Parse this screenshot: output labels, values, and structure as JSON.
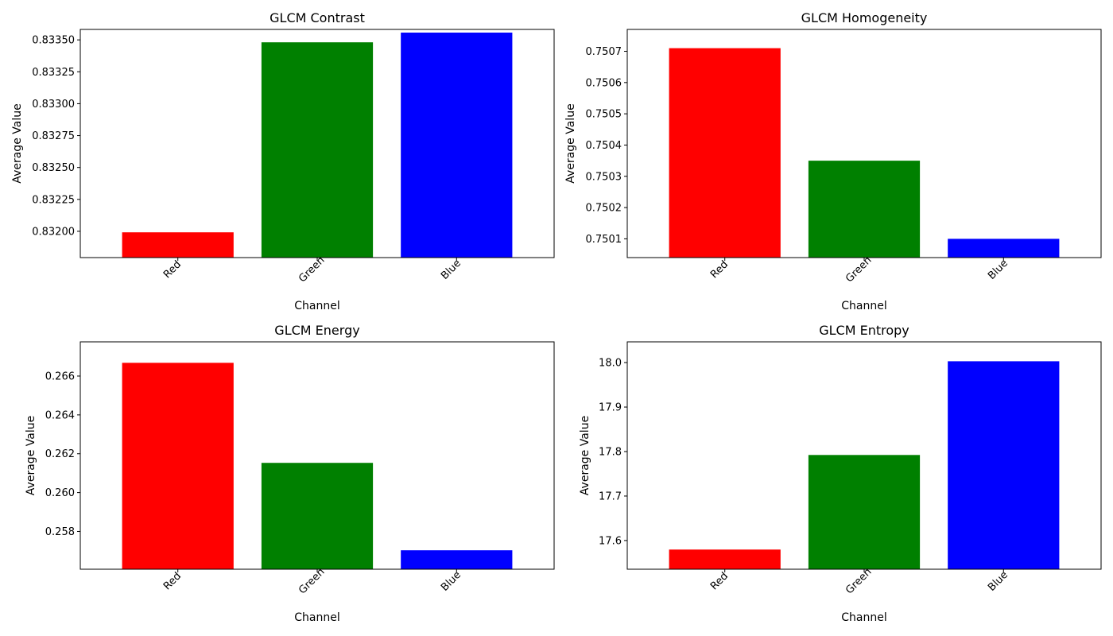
{
  "chart_data": [
    {
      "type": "bar",
      "title": "GLCM Contrast",
      "xlabel": "Channel",
      "ylabel": "Average Value",
      "categories": [
        "Red",
        "Green",
        "Blue"
      ],
      "values": [
        0.831992,
        0.833481,
        0.833557
      ],
      "colors": [
        "#ff0000",
        "#008000",
        "#0000ff"
      ],
      "ylim": [
        0.831794,
        0.833582
      ],
      "yticks": [
        0.832,
        0.83225,
        0.8325,
        0.83275,
        0.833,
        0.83325,
        0.8335
      ],
      "ytick_labels": [
        "0.83200",
        "0.83225",
        "0.83250",
        "0.83275",
        "0.83300",
        "0.83325",
        "0.83350"
      ]
    },
    {
      "type": "bar",
      "title": "GLCM Homogeneity",
      "xlabel": "Channel",
      "ylabel": "Average Value",
      "categories": [
        "Red",
        "Green",
        "Blue"
      ],
      "values": [
        0.75071,
        0.75035,
        0.7501
      ],
      "colors": [
        "#ff0000",
        "#008000",
        "#0000ff"
      ],
      "ylim": [
        0.75004,
        0.75077
      ],
      "yticks": [
        0.7501,
        0.7502,
        0.7503,
        0.7504,
        0.7505,
        0.7506,
        0.7507
      ],
      "ytick_labels": [
        "0.7501",
        "0.7502",
        "0.7503",
        "0.7504",
        "0.7505",
        "0.7506",
        "0.7507"
      ]
    },
    {
      "type": "bar",
      "title": "GLCM Energy",
      "xlabel": "Channel",
      "ylabel": "Average Value",
      "categories": [
        "Red",
        "Green",
        "Blue"
      ],
      "values": [
        0.26668,
        0.26153,
        0.25703
      ],
      "colors": [
        "#ff0000",
        "#008000",
        "#0000ff"
      ],
      "ylim": [
        0.256055,
        0.26776
      ],
      "yticks": [
        0.258,
        0.26,
        0.262,
        0.264,
        0.266
      ],
      "ytick_labels": [
        "0.258",
        "0.260",
        "0.262",
        "0.264",
        "0.266"
      ]
    },
    {
      "type": "bar",
      "title": "GLCM Entropy",
      "xlabel": "Channel",
      "ylabel": "Average Value",
      "categories": [
        "Red",
        "Green",
        "Blue"
      ],
      "values": [
        17.5797,
        17.7923,
        18.003
      ],
      "colors": [
        "#ff0000",
        "#008000",
        "#0000ff"
      ],
      "ylim": [
        17.5355,
        18.0466
      ],
      "yticks": [
        17.6,
        17.7,
        17.8,
        17.9,
        18.0
      ],
      "ytick_labels": [
        "17.6",
        "17.7",
        "17.8",
        "17.9",
        "18.0"
      ]
    }
  ]
}
